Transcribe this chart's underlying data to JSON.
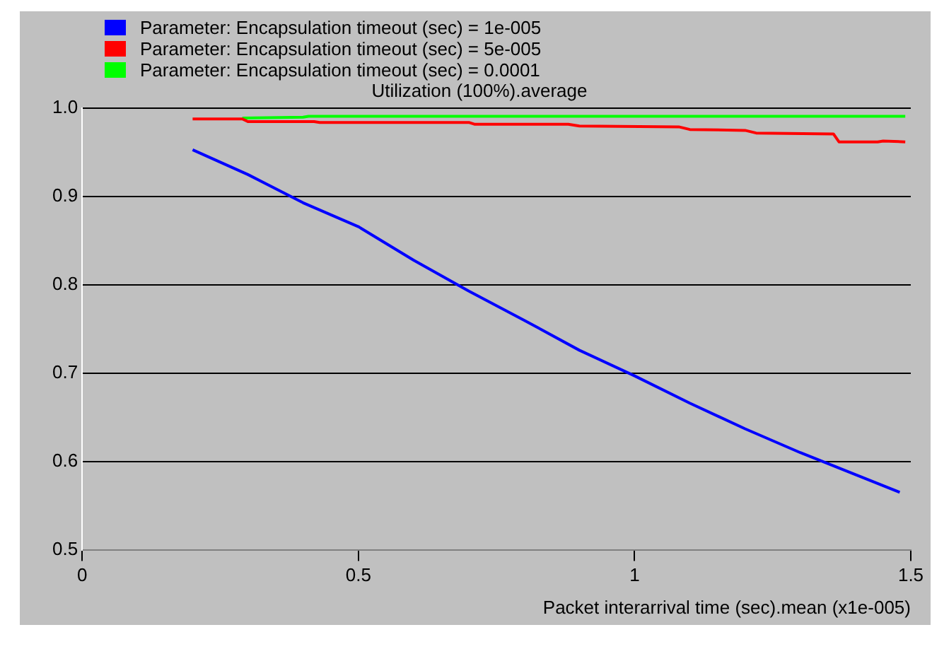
{
  "chart_data": {
    "type": "line",
    "title": "Utilization (100%).average",
    "xlabel": "Packet interarrival time (sec).mean (x1e-005)",
    "xlim": [
      0,
      1.5
    ],
    "xticks": [
      0,
      0.5,
      1,
      1.5
    ],
    "ylim": [
      0.5,
      1.0
    ],
    "yticks": [
      0.5,
      0.6,
      0.7,
      0.8,
      0.9,
      {
        "value": 1,
        "label": "1.0"
      }
    ],
    "grid": "y",
    "legend": "top left",
    "marker": "none",
    "line_style": "solid",
    "series": [
      {
        "name": "Parameter: Encapsulation timeout (sec) = 1e-005",
        "color": "#0000ff",
        "x": [
          0.2,
          0.3,
          0.4,
          0.5,
          0.6,
          0.7,
          0.8,
          0.9,
          1.0,
          1.1,
          1.2,
          1.3,
          1.4,
          1.48
        ],
        "values": [
          0.953,
          0.925,
          0.893,
          0.866,
          0.828,
          0.793,
          0.76,
          0.726,
          0.697,
          0.666,
          0.637,
          0.61,
          0.585,
          0.565
        ]
      },
      {
        "name": "Parameter: Encapsulation timeout (sec) = 5e-005",
        "color": "#ff0000",
        "x": [
          0.2,
          0.29,
          0.3,
          0.42,
          0.43,
          0.7,
          0.71,
          0.88,
          0.9,
          1.08,
          1.1,
          1.2,
          1.22,
          1.36,
          1.37,
          1.44,
          1.45,
          1.49
        ],
        "values": [
          0.988,
          0.988,
          0.985,
          0.985,
          0.984,
          0.984,
          0.982,
          0.982,
          0.98,
          0.979,
          0.976,
          0.975,
          0.972,
          0.971,
          0.962,
          0.962,
          0.963,
          0.962
        ]
      },
      {
        "name": "Parameter: Encapsulation timeout (sec) = 0.0001",
        "color": "#00ff00",
        "x": [
          0.29,
          0.4,
          0.41,
          1.49
        ],
        "values": [
          0.989,
          0.99,
          0.991,
          0.991
        ]
      }
    ]
  }
}
